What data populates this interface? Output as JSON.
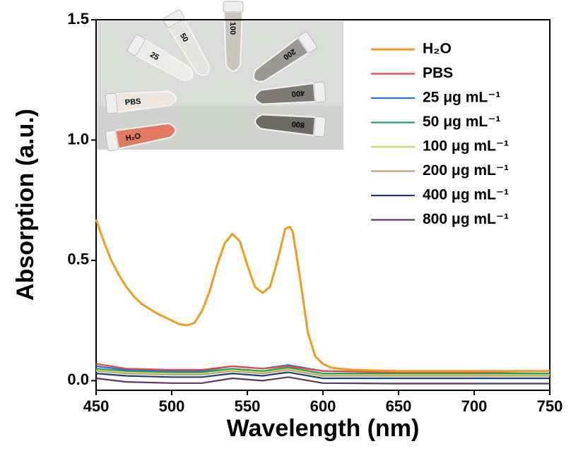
{
  "chart_data": {
    "type": "line",
    "xlabel": "Wavelength (nm)",
    "ylabel": "Absorption (a.u.)",
    "xlim": [
      450,
      750
    ],
    "xticks": [
      450,
      500,
      550,
      600,
      650,
      700,
      750
    ],
    "ylim": [
      -0.04,
      1.5
    ],
    "yticks": [
      {
        "value": 0,
        "label": "0.0"
      },
      {
        "value": 0.5,
        "label": "0.5"
      },
      {
        "value": 1,
        "label": "1.0"
      },
      {
        "value": 1.5,
        "label": "1.5"
      }
    ],
    "legend": "upper right",
    "inset_labels": [
      "H₂O",
      "PBS",
      "25",
      "50",
      "100",
      "200",
      "400",
      "800"
    ],
    "series": [
      {
        "name": "H₂O",
        "color": "#f39a1f",
        "x": [
          450,
          455,
          460,
          465,
          470,
          475,
          480,
          485,
          490,
          495,
          500,
          505,
          510,
          515,
          520,
          525,
          530,
          535,
          540,
          545,
          550,
          555,
          560,
          565,
          570,
          575,
          578,
          580,
          585,
          590,
          595,
          600,
          605,
          610,
          620,
          650,
          700,
          750
        ],
        "values": [
          0.67,
          0.58,
          0.5,
          0.44,
          0.39,
          0.35,
          0.32,
          0.3,
          0.28,
          0.265,
          0.25,
          0.235,
          0.23,
          0.24,
          0.29,
          0.37,
          0.48,
          0.57,
          0.61,
          0.58,
          0.48,
          0.39,
          0.365,
          0.39,
          0.5,
          0.63,
          0.64,
          0.62,
          0.42,
          0.2,
          0.1,
          0.07,
          0.055,
          0.05,
          0.045,
          0.04,
          0.04,
          0.04
        ]
      },
      {
        "name": "PBS",
        "color": "#e8474a",
        "x": [
          450,
          470,
          500,
          520,
          540,
          560,
          577,
          600,
          650,
          700,
          750
        ],
        "values": [
          0.07,
          0.05,
          0.045,
          0.045,
          0.06,
          0.05,
          0.06,
          0.04,
          0.035,
          0.035,
          0.04
        ]
      },
      {
        "name": "25 μg mL⁻¹",
        "color": "#2a6fd1",
        "x": [
          450,
          470,
          500,
          520,
          540,
          560,
          577,
          600,
          650,
          700,
          750
        ],
        "values": [
          0.06,
          0.045,
          0.04,
          0.04,
          0.06,
          0.05,
          0.065,
          0.04,
          0.035,
          0.035,
          0.04
        ]
      },
      {
        "name": "50 μg mL⁻¹",
        "color": "#22a36b",
        "x": [
          450,
          470,
          500,
          520,
          540,
          560,
          577,
          600,
          650,
          700,
          750
        ],
        "values": [
          0.05,
          0.04,
          0.035,
          0.035,
          0.05,
          0.04,
          0.055,
          0.03,
          0.03,
          0.03,
          0.03
        ]
      },
      {
        "name": "100 μg mL⁻¹",
        "color": "#d4d46a",
        "x": [
          450,
          470,
          500,
          520,
          540,
          560,
          577,
          600,
          650,
          700,
          750
        ],
        "values": [
          0.045,
          0.035,
          0.03,
          0.03,
          0.045,
          0.035,
          0.05,
          0.025,
          0.025,
          0.025,
          0.025
        ]
      },
      {
        "name": "200 μg mL⁻¹",
        "color": "#b8a06a",
        "x": [
          450,
          470,
          500,
          520,
          540,
          560,
          577,
          600,
          650,
          700,
          750
        ],
        "values": [
          0.04,
          0.03,
          0.025,
          0.025,
          0.04,
          0.03,
          0.045,
          0.02,
          0.02,
          0.02,
          0.02
        ]
      },
      {
        "name": "400 μg mL⁻¹",
        "color": "#1f3f7a",
        "x": [
          450,
          470,
          500,
          520,
          540,
          560,
          577,
          600,
          650,
          700,
          750
        ],
        "values": [
          0.03,
          0.02,
          0.015,
          0.015,
          0.03,
          0.02,
          0.035,
          0.01,
          0.01,
          0.01,
          0.01
        ]
      },
      {
        "name": "800 μg mL⁻¹",
        "color": "#5a3a5e",
        "x": [
          450,
          470,
          500,
          520,
          540,
          560,
          577,
          600,
          650,
          700,
          750
        ],
        "values": [
          0.01,
          -0.005,
          -0.01,
          -0.01,
          0.01,
          0,
          0.015,
          -0.01,
          -0.012,
          -0.012,
          -0.012
        ]
      }
    ]
  }
}
